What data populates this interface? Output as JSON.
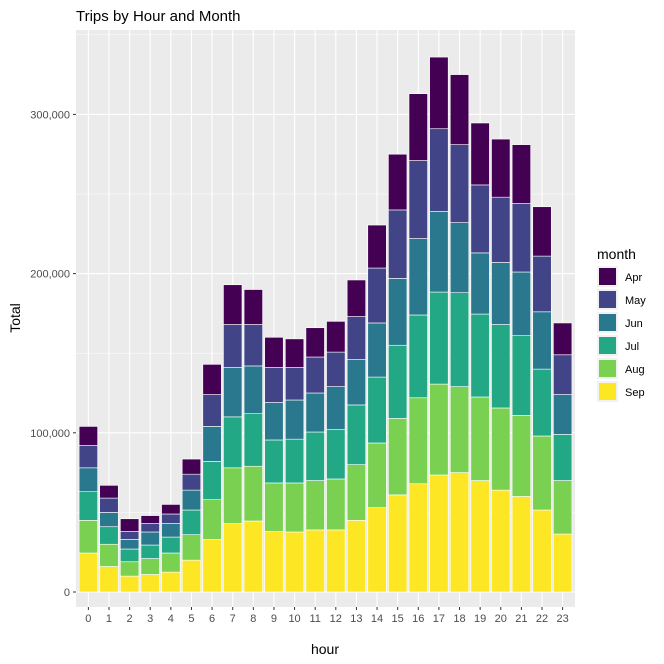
{
  "chart_data": {
    "type": "bar",
    "stacked": true,
    "title": "Trips by Hour and Month",
    "xlabel": "hour",
    "ylabel": "Total",
    "ylim": [
      0,
      350000
    ],
    "yticks": [
      0,
      100000,
      200000,
      300000
    ],
    "ytick_labels": [
      "0",
      "100,000",
      "200,000",
      "300,000"
    ],
    "grid": true,
    "legend": {
      "title": "month",
      "position": "right"
    },
    "categories": [
      "0",
      "1",
      "2",
      "3",
      "4",
      "5",
      "6",
      "7",
      "8",
      "9",
      "10",
      "11",
      "12",
      "13",
      "14",
      "15",
      "16",
      "17",
      "18",
      "19",
      "20",
      "21",
      "22",
      "23"
    ],
    "series": [
      {
        "name": "Sep",
        "color": "#FDE725",
        "values": [
          24500,
          16000,
          10000,
          11000,
          12500,
          20000,
          33000,
          43000,
          44600,
          38000,
          37700,
          39000,
          39000,
          45000,
          53000,
          61000,
          68000,
          73500,
          75000,
          70000,
          64000,
          60000,
          51500,
          36400
        ]
      },
      {
        "name": "Aug",
        "color": "#7AD151",
        "values": [
          20500,
          14000,
          9000,
          10000,
          12000,
          16000,
          25000,
          35000,
          34400,
          30500,
          30800,
          31000,
          32000,
          35000,
          40600,
          48000,
          54000,
          57100,
          54000,
          52500,
          51600,
          51000,
          46500,
          33600
        ]
      },
      {
        "name": "Jul",
        "color": "#22A884",
        "values": [
          18000,
          11000,
          8000,
          8500,
          10000,
          15500,
          24000,
          32000,
          33000,
          27000,
          27500,
          30500,
          31000,
          37500,
          41400,
          46000,
          52000,
          57800,
          59000,
          52100,
          52400,
          50000,
          42000,
          29000
        ]
      },
      {
        "name": "Jun",
        "color": "#2A788E",
        "values": [
          15000,
          9000,
          6000,
          8200,
          8500,
          12500,
          22000,
          31000,
          30000,
          23500,
          24600,
          24500,
          27000,
          28500,
          34000,
          42000,
          48000,
          50600,
          44000,
          38400,
          39000,
          40000,
          36000,
          25000
        ]
      },
      {
        "name": "May",
        "color": "#414487",
        "values": [
          14000,
          9000,
          5000,
          5300,
          6000,
          10000,
          20000,
          27000,
          26000,
          22000,
          20400,
          22600,
          21700,
          27000,
          34500,
          43000,
          49000,
          52000,
          49000,
          42700,
          41000,
          43000,
          35000,
          25000
        ]
      },
      {
        "name": "Apr",
        "color": "#440154",
        "values": [
          12000,
          8000,
          8000,
          5000,
          6000,
          9500,
          19000,
          25000,
          22000,
          19000,
          18000,
          18400,
          19300,
          23000,
          27000,
          35000,
          42000,
          45000,
          44000,
          38900,
          36500,
          37000,
          31000,
          20000
        ]
      }
    ],
    "legend_order": [
      "Apr",
      "May",
      "Jun",
      "Jul",
      "Aug",
      "Sep"
    ]
  }
}
